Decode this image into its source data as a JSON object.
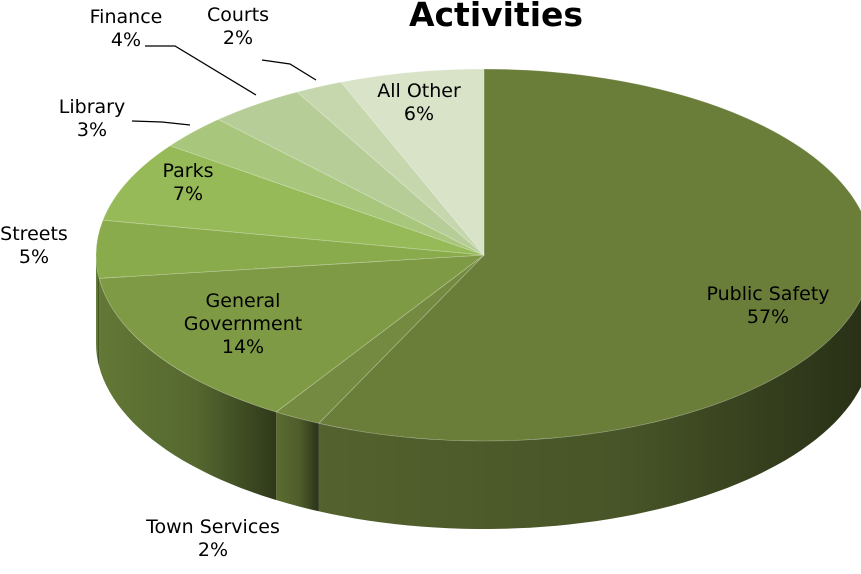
{
  "chart_data": {
    "type": "pie",
    "title": "Activities",
    "series": [
      {
        "name": "Public Safety",
        "value": 57,
        "percent_label": "57%",
        "color": "#6a7e3a"
      },
      {
        "name": "Town Services",
        "value": 2,
        "percent_label": "2%",
        "color": "#748a40"
      },
      {
        "name": "General Government",
        "value": 14,
        "percent_label": "14%",
        "color": "#7f9a45"
      },
      {
        "name": "Streets",
        "value": 5,
        "percent_label": "5%",
        "color": "#89ab4c"
      },
      {
        "name": "Parks",
        "value": 7,
        "percent_label": "7%",
        "color": "#96ba57"
      },
      {
        "name": "Library",
        "value": 3,
        "percent_label": "3%",
        "color": "#a9c77c"
      },
      {
        "name": "Finance",
        "value": 4,
        "percent_label": "4%",
        "color": "#b7cd97"
      },
      {
        "name": "Courts",
        "value": 2,
        "percent_label": "2%",
        "color": "#c6d7ae"
      },
      {
        "name": "All Other",
        "value": 6,
        "percent_label": "6%",
        "color": "#d9e3c8"
      }
    ],
    "style": "3d-pie",
    "legend": "none",
    "data_labels": "category-and-percent"
  }
}
